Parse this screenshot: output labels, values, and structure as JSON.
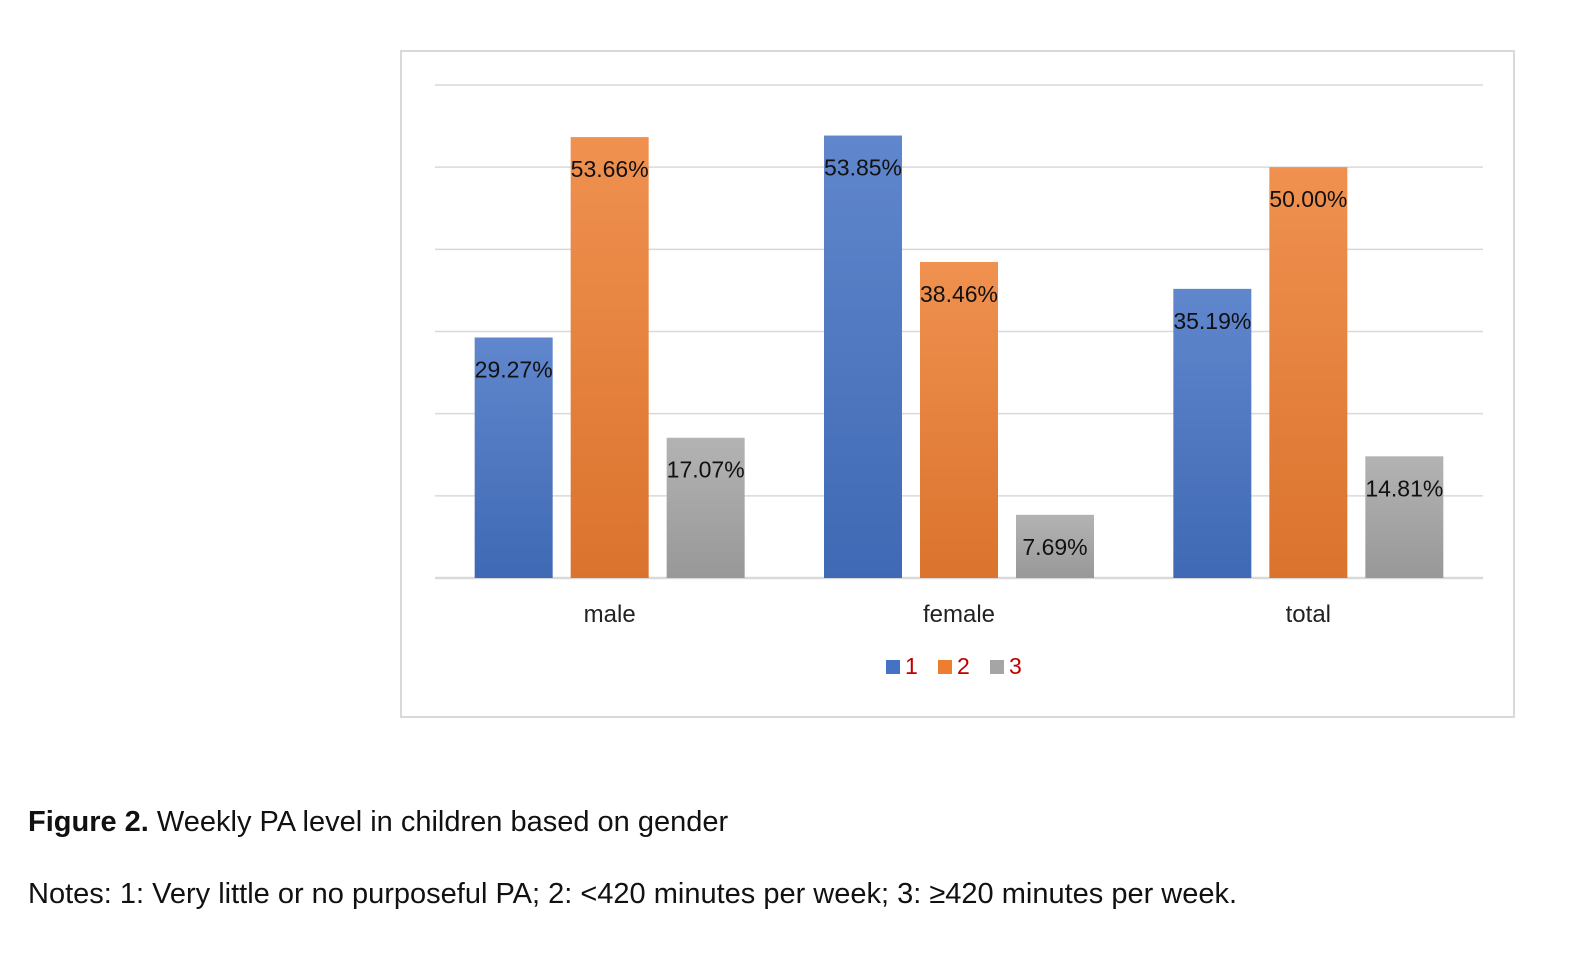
{
  "chart_data": {
    "type": "bar",
    "categories": [
      "male",
      "female",
      "total"
    ],
    "series": [
      {
        "name": "1",
        "values": [
          29.27,
          53.85,
          35.19
        ],
        "labels": [
          "29.27%",
          "53.85%",
          "35.19%"
        ],
        "color": "#4472c4"
      },
      {
        "name": "2",
        "values": [
          53.66,
          38.46,
          50.0
        ],
        "labels": [
          "53.66%",
          "38.46%",
          "50.00%"
        ],
        "color": "#ed7d31"
      },
      {
        "name": "3",
        "values": [
          17.07,
          7.69,
          14.81
        ],
        "labels": [
          "17.07%",
          "7.69%",
          "14.81%"
        ],
        "color": "#a5a5a5"
      }
    ],
    "ylim": [
      0,
      60
    ],
    "grid": true,
    "legend_position": "bottom",
    "legend_text_color": "#c00000"
  },
  "caption": {
    "figure_label": "Figure 2.",
    "title": " Weekly PA level in children based on gender",
    "notes": "Notes: 1: Very little or no purposeful PA; 2: <420 minutes per week; 3: ≥420 minutes per week."
  }
}
